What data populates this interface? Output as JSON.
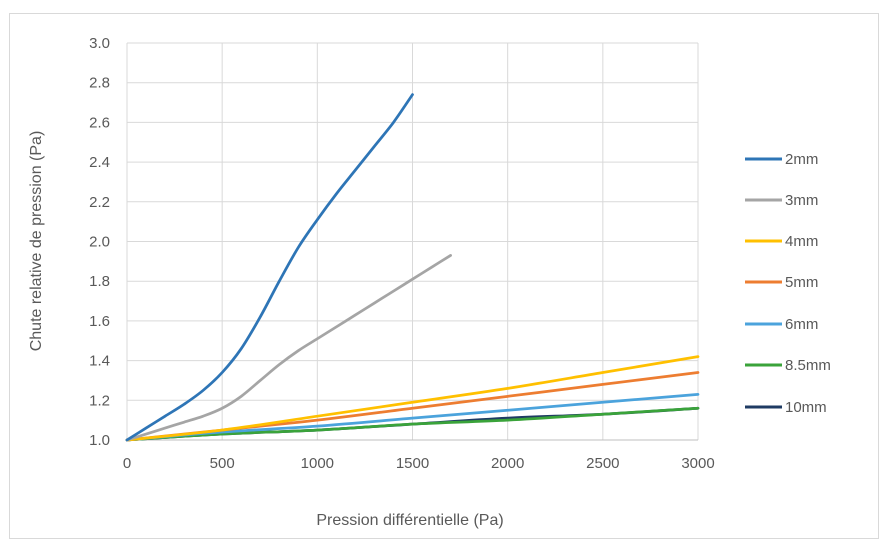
{
  "chart_data": {
    "type": "line",
    "title": "",
    "xlabel": "Pression différentielle (Pa)",
    "ylabel": "Chute relative de pression (Pa)",
    "xlim": [
      0,
      3000
    ],
    "ylim": [
      1.0,
      3.0
    ],
    "x_ticks": [
      "0",
      "500",
      "1000",
      "1500",
      "2000",
      "2500",
      "3000"
    ],
    "y_ticks": [
      "1.0",
      "1.2",
      "1.4",
      "1.6",
      "1.8",
      "2.0",
      "2.2",
      "2.4",
      "2.6",
      "2.8",
      "3.0"
    ],
    "x_tick_values": [
      0,
      500,
      1000,
      1500,
      2000,
      2500,
      3000
    ],
    "y_tick_values": [
      1.0,
      1.2,
      1.4,
      1.6,
      1.8,
      2.0,
      2.2,
      2.4,
      2.6,
      2.8,
      3.0
    ],
    "grid": true,
    "legend_position": "right",
    "series": [
      {
        "name": "2mm",
        "color": "#2e75b6",
        "x": [
          0,
          100,
          200,
          300,
          400,
          500,
          600,
          700,
          800,
          900,
          1000,
          1100,
          1200,
          1300,
          1400,
          1500
        ],
        "y": [
          1.0,
          1.06,
          1.12,
          1.18,
          1.25,
          1.34,
          1.46,
          1.62,
          1.8,
          1.97,
          2.11,
          2.24,
          2.36,
          2.48,
          2.6,
          2.74
        ]
      },
      {
        "name": "3mm",
        "color": "#a5a5a5",
        "x": [
          0,
          100,
          200,
          300,
          400,
          500,
          600,
          700,
          800,
          900,
          1000,
          1100,
          1200,
          1300,
          1400,
          1500,
          1600,
          1700
        ],
        "y": [
          1.0,
          1.03,
          1.06,
          1.09,
          1.12,
          1.16,
          1.22,
          1.3,
          1.38,
          1.45,
          1.51,
          1.57,
          1.63,
          1.69,
          1.75,
          1.81,
          1.87,
          1.93
        ]
      },
      {
        "name": "4mm",
        "color": "#ffc000",
        "x": [
          0,
          500,
          1000,
          1500,
          2000,
          2500,
          3000
        ],
        "y": [
          1.0,
          1.05,
          1.12,
          1.19,
          1.26,
          1.34,
          1.42
        ]
      },
      {
        "name": "5mm",
        "color": "#ed7d31",
        "x": [
          0,
          500,
          1000,
          1500,
          2000,
          2500,
          3000
        ],
        "y": [
          1.0,
          1.05,
          1.1,
          1.16,
          1.22,
          1.28,
          1.34
        ]
      },
      {
        "name": "6mm",
        "color": "#4ba3dc",
        "x": [
          0,
          500,
          1000,
          1500,
          2000,
          2500,
          3000
        ],
        "y": [
          1.0,
          1.04,
          1.07,
          1.11,
          1.15,
          1.19,
          1.23
        ]
      },
      {
        "name": "8.5mm",
        "color": "#3aa33a",
        "x": [
          0,
          500,
          1000,
          1500,
          2000,
          2500,
          3000
        ],
        "y": [
          1.0,
          1.03,
          1.05,
          1.08,
          1.1,
          1.13,
          1.16
        ]
      },
      {
        "name": "10mm",
        "color": "#1f3b63",
        "x": [
          0,
          500,
          1000,
          1500,
          2000,
          2500,
          3000
        ],
        "y": [
          1.0,
          1.03,
          1.05,
          1.08,
          1.11,
          1.13,
          1.16
        ]
      }
    ]
  }
}
